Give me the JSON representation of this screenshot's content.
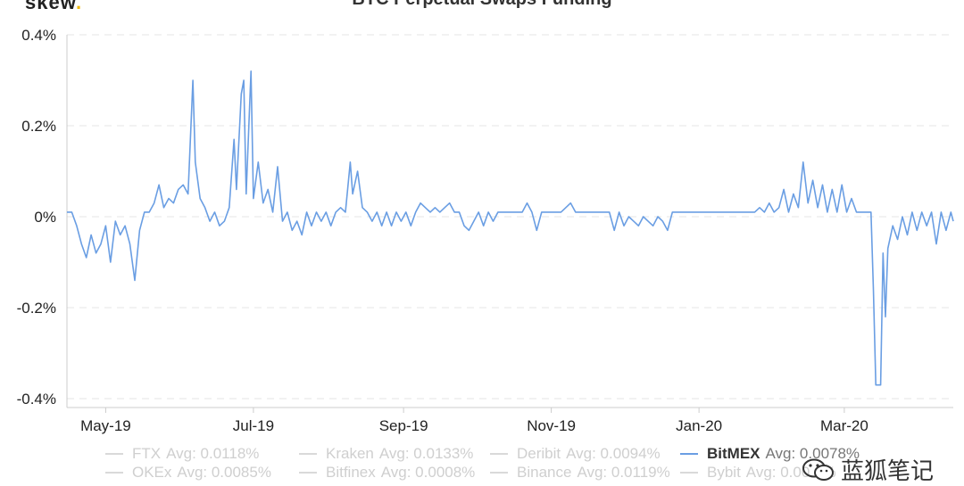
{
  "header": {
    "brand": "skew",
    "title": "BTC Perpetual Swaps Funding"
  },
  "chart_data": {
    "type": "line",
    "title": "BTC Perpetual Swaps Funding",
    "xlabel": "",
    "ylabel": "",
    "y_ticks": [
      "0.4%",
      "0.2%",
      "0%",
      "-0.2%",
      "-0.4%"
    ],
    "y_tick_values": [
      0.4,
      0.2,
      0,
      -0.2,
      -0.4
    ],
    "x_ticks": [
      "May-19",
      "Jul-19",
      "Sep-19",
      "Nov-19",
      "Jan-20",
      "Mar-20"
    ],
    "x_tick_values": [
      "2019-05-01",
      "2019-07-01",
      "2019-09-01",
      "2019-11-01",
      "2020-01-01",
      "2020-03-01"
    ],
    "xlim": [
      "2019-04-15",
      "2020-04-15"
    ],
    "ylim": [
      -0.4,
      0.4
    ],
    "grid": "horizontal dashed",
    "legend_position": "bottom",
    "series": [
      {
        "name": "BitMEX",
        "color": "#6a9ee3",
        "points": [
          [
            "2019-04-15",
            0.01
          ],
          [
            "2019-04-17",
            0.01
          ],
          [
            "2019-04-19",
            -0.02
          ],
          [
            "2019-04-21",
            -0.06
          ],
          [
            "2019-04-23",
            -0.09
          ],
          [
            "2019-04-25",
            -0.04
          ],
          [
            "2019-04-27",
            -0.08
          ],
          [
            "2019-04-29",
            -0.06
          ],
          [
            "2019-05-01",
            -0.02
          ],
          [
            "2019-05-03",
            -0.1
          ],
          [
            "2019-05-05",
            -0.01
          ],
          [
            "2019-05-07",
            -0.04
          ],
          [
            "2019-05-09",
            -0.02
          ],
          [
            "2019-05-11",
            -0.06
          ],
          [
            "2019-05-13",
            -0.14
          ],
          [
            "2019-05-15",
            -0.03
          ],
          [
            "2019-05-17",
            0.01
          ],
          [
            "2019-05-19",
            0.01
          ],
          [
            "2019-05-21",
            0.03
          ],
          [
            "2019-05-23",
            0.07
          ],
          [
            "2019-05-25",
            0.02
          ],
          [
            "2019-05-27",
            0.04
          ],
          [
            "2019-05-29",
            0.03
          ],
          [
            "2019-05-31",
            0.06
          ],
          [
            "2019-06-02",
            0.07
          ],
          [
            "2019-06-04",
            0.05
          ],
          [
            "2019-06-06",
            0.3
          ],
          [
            "2019-06-07",
            0.12
          ],
          [
            "2019-06-09",
            0.04
          ],
          [
            "2019-06-11",
            0.02
          ],
          [
            "2019-06-13",
            -0.01
          ],
          [
            "2019-06-15",
            0.01
          ],
          [
            "2019-06-17",
            -0.02
          ],
          [
            "2019-06-19",
            -0.01
          ],
          [
            "2019-06-21",
            0.02
          ],
          [
            "2019-06-23",
            0.17
          ],
          [
            "2019-06-24",
            0.06
          ],
          [
            "2019-06-26",
            0.27
          ],
          [
            "2019-06-27",
            0.3
          ],
          [
            "2019-06-28",
            0.05
          ],
          [
            "2019-06-30",
            0.32
          ],
          [
            "2019-07-01",
            0.04
          ],
          [
            "2019-07-03",
            0.12
          ],
          [
            "2019-07-05",
            0.03
          ],
          [
            "2019-07-07",
            0.06
          ],
          [
            "2019-07-09",
            0.01
          ],
          [
            "2019-07-11",
            0.11
          ],
          [
            "2019-07-13",
            -0.01
          ],
          [
            "2019-07-15",
            0.01
          ],
          [
            "2019-07-17",
            -0.03
          ],
          [
            "2019-07-19",
            -0.01
          ],
          [
            "2019-07-21",
            -0.04
          ],
          [
            "2019-07-23",
            0.01
          ],
          [
            "2019-07-25",
            -0.02
          ],
          [
            "2019-07-27",
            0.01
          ],
          [
            "2019-07-29",
            -0.01
          ],
          [
            "2019-07-31",
            0.01
          ],
          [
            "2019-08-02",
            -0.02
          ],
          [
            "2019-08-04",
            0.01
          ],
          [
            "2019-08-06",
            0.02
          ],
          [
            "2019-08-08",
            0.01
          ],
          [
            "2019-08-10",
            0.12
          ],
          [
            "2019-08-11",
            0.05
          ],
          [
            "2019-08-13",
            0.1
          ],
          [
            "2019-08-15",
            0.02
          ],
          [
            "2019-08-17",
            0.01
          ],
          [
            "2019-08-19",
            -0.01
          ],
          [
            "2019-08-21",
            0.01
          ],
          [
            "2019-08-23",
            -0.02
          ],
          [
            "2019-08-25",
            0.01
          ],
          [
            "2019-08-27",
            -0.02
          ],
          [
            "2019-08-29",
            0.01
          ],
          [
            "2019-08-31",
            -0.01
          ],
          [
            "2019-09-02",
            0.01
          ],
          [
            "2019-09-04",
            -0.02
          ],
          [
            "2019-09-06",
            0.01
          ],
          [
            "2019-09-08",
            0.03
          ],
          [
            "2019-09-10",
            0.02
          ],
          [
            "2019-09-12",
            0.01
          ],
          [
            "2019-09-14",
            0.02
          ],
          [
            "2019-09-16",
            0.01
          ],
          [
            "2019-09-18",
            0.02
          ],
          [
            "2019-09-20",
            0.03
          ],
          [
            "2019-09-22",
            0.01
          ],
          [
            "2019-09-24",
            0.01
          ],
          [
            "2019-09-26",
            -0.02
          ],
          [
            "2019-09-28",
            -0.03
          ],
          [
            "2019-09-30",
            -0.01
          ],
          [
            "2019-10-02",
            0.01
          ],
          [
            "2019-10-04",
            -0.02
          ],
          [
            "2019-10-06",
            0.01
          ],
          [
            "2019-10-08",
            -0.01
          ],
          [
            "2019-10-10",
            0.01
          ],
          [
            "2019-10-12",
            0.01
          ],
          [
            "2019-10-14",
            0.01
          ],
          [
            "2019-10-16",
            0.01
          ],
          [
            "2019-10-18",
            0.01
          ],
          [
            "2019-10-20",
            0.01
          ],
          [
            "2019-10-22",
            0.03
          ],
          [
            "2019-10-24",
            0.01
          ],
          [
            "2019-10-26",
            -0.03
          ],
          [
            "2019-10-28",
            0.01
          ],
          [
            "2019-10-30",
            0.01
          ],
          [
            "2019-11-01",
            0.01
          ],
          [
            "2019-11-03",
            0.01
          ],
          [
            "2019-11-05",
            0.01
          ],
          [
            "2019-11-07",
            0.02
          ],
          [
            "2019-11-09",
            0.03
          ],
          [
            "2019-11-11",
            0.01
          ],
          [
            "2019-11-13",
            0.01
          ],
          [
            "2019-11-15",
            0.01
          ],
          [
            "2019-11-17",
            0.01
          ],
          [
            "2019-11-19",
            0.01
          ],
          [
            "2019-11-21",
            0.01
          ],
          [
            "2019-11-23",
            0.01
          ],
          [
            "2019-11-25",
            0.01
          ],
          [
            "2019-11-27",
            -0.03
          ],
          [
            "2019-11-29",
            0.01
          ],
          [
            "2019-12-01",
            -0.02
          ],
          [
            "2019-12-03",
            0.0
          ],
          [
            "2019-12-05",
            -0.01
          ],
          [
            "2019-12-07",
            -0.02
          ],
          [
            "2019-12-09",
            0.0
          ],
          [
            "2019-12-11",
            -0.01
          ],
          [
            "2019-12-13",
            -0.02
          ],
          [
            "2019-12-15",
            0.0
          ],
          [
            "2019-12-17",
            -0.01
          ],
          [
            "2019-12-19",
            -0.03
          ],
          [
            "2019-12-21",
            0.01
          ],
          [
            "2019-12-23",
            0.01
          ],
          [
            "2019-12-25",
            0.01
          ],
          [
            "2019-12-27",
            0.01
          ],
          [
            "2019-12-29",
            0.01
          ],
          [
            "2019-12-31",
            0.01
          ],
          [
            "2020-01-02",
            0.01
          ],
          [
            "2020-01-04",
            0.01
          ],
          [
            "2020-01-06",
            0.01
          ],
          [
            "2020-01-08",
            0.01
          ],
          [
            "2020-01-10",
            0.01
          ],
          [
            "2020-01-12",
            0.01
          ],
          [
            "2020-01-14",
            0.01
          ],
          [
            "2020-01-16",
            0.01
          ],
          [
            "2020-01-18",
            0.01
          ],
          [
            "2020-01-20",
            0.01
          ],
          [
            "2020-01-22",
            0.01
          ],
          [
            "2020-01-24",
            0.01
          ],
          [
            "2020-01-26",
            0.02
          ],
          [
            "2020-01-28",
            0.01
          ],
          [
            "2020-01-30",
            0.03
          ],
          [
            "2020-02-01",
            0.01
          ],
          [
            "2020-02-03",
            0.02
          ],
          [
            "2020-02-05",
            0.06
          ],
          [
            "2020-02-07",
            0.01
          ],
          [
            "2020-02-09",
            0.05
          ],
          [
            "2020-02-11",
            0.02
          ],
          [
            "2020-02-13",
            0.12
          ],
          [
            "2020-02-15",
            0.03
          ],
          [
            "2020-02-17",
            0.08
          ],
          [
            "2020-02-19",
            0.02
          ],
          [
            "2020-02-21",
            0.07
          ],
          [
            "2020-02-23",
            0.01
          ],
          [
            "2020-02-25",
            0.06
          ],
          [
            "2020-02-27",
            0.01
          ],
          [
            "2020-02-29",
            0.07
          ],
          [
            "2020-03-02",
            0.01
          ],
          [
            "2020-03-04",
            0.04
          ],
          [
            "2020-03-06",
            0.01
          ],
          [
            "2020-03-08",
            0.01
          ],
          [
            "2020-03-10",
            0.01
          ],
          [
            "2020-03-12",
            0.01
          ],
          [
            "2020-03-13",
            -0.16
          ],
          [
            "2020-03-14",
            -0.37
          ],
          [
            "2020-03-16",
            -0.37
          ],
          [
            "2020-03-17",
            -0.08
          ],
          [
            "2020-03-18",
            -0.22
          ],
          [
            "2020-03-19",
            -0.07
          ],
          [
            "2020-03-21",
            -0.02
          ],
          [
            "2020-03-23",
            -0.05
          ],
          [
            "2020-03-25",
            0.0
          ],
          [
            "2020-03-27",
            -0.04
          ],
          [
            "2020-03-29",
            0.01
          ],
          [
            "2020-03-31",
            -0.03
          ],
          [
            "2020-04-02",
            0.01
          ],
          [
            "2020-04-04",
            -0.02
          ],
          [
            "2020-04-06",
            0.01
          ],
          [
            "2020-04-08",
            -0.06
          ],
          [
            "2020-04-10",
            0.01
          ],
          [
            "2020-04-12",
            -0.03
          ],
          [
            "2020-04-14",
            0.01
          ],
          [
            "2020-04-15",
            -0.01
          ]
        ]
      }
    ],
    "legend": [
      {
        "name": "FTX",
        "avg": "Avg: 0.0118%",
        "active": false
      },
      {
        "name": "Kraken",
        "avg": "Avg: 0.0133%",
        "active": false
      },
      {
        "name": "Deribit",
        "avg": "Avg: 0.0094%",
        "active": false
      },
      {
        "name": "BitMEX",
        "avg": "Avg: 0.0078%",
        "active": true
      },
      {
        "name": "OKEx",
        "avg": "Avg: 0.0085%",
        "active": false
      },
      {
        "name": "Bitfinex",
        "avg": "Avg: 0.0008%",
        "active": false
      },
      {
        "name": "Binance",
        "avg": "Avg: 0.0119%",
        "active": false
      },
      {
        "name": "Bybit",
        "avg": "Avg: 0.00...%",
        "active": false
      }
    ]
  },
  "watermark": {
    "text": "蓝狐笔记",
    "icon": "wechat-icon"
  },
  "colors": {
    "series": "#6a9ee3",
    "grid": "#e6e6e6",
    "axis": "#cccccc"
  }
}
